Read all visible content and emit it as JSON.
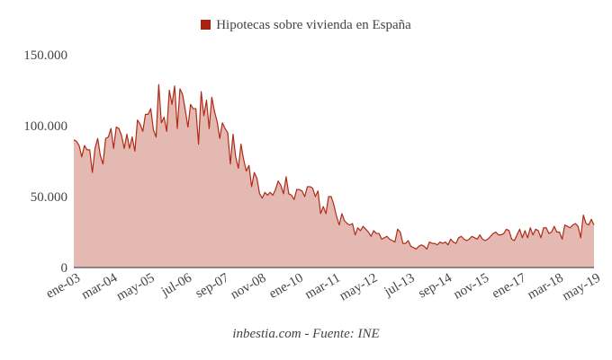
{
  "chart_data": {
    "type": "area",
    "title": "",
    "legend": [
      {
        "label": "Hipotecas sobre vivienda en España",
        "color": "#a8220f"
      }
    ],
    "legend_position": "top-center",
    "footer": "inbestia.com - Fuente: INE",
    "xlabel": "",
    "ylabel": "",
    "ylim": [
      0,
      150000
    ],
    "y_ticks": [
      {
        "value": 0,
        "label": "0"
      },
      {
        "value": 50000,
        "label": "50.000"
      },
      {
        "value": 100000,
        "label": "100.000"
      },
      {
        "value": 150000,
        "label": "150.000"
      }
    ],
    "x_start": {
      "year": 2003,
      "month": 1
    },
    "x_frequency": "monthly",
    "x_tick_labels": [
      {
        "index": 0,
        "label": "ene-03"
      },
      {
        "index": 14,
        "label": "mar-04"
      },
      {
        "index": 28,
        "label": "may-05"
      },
      {
        "index": 42,
        "label": "jul-06"
      },
      {
        "index": 56,
        "label": "sep-07"
      },
      {
        "index": 70,
        "label": "nov-08"
      },
      {
        "index": 84,
        "label": "ene-10"
      },
      {
        "index": 98,
        "label": "mar-11"
      },
      {
        "index": 112,
        "label": "may-12"
      },
      {
        "index": 126,
        "label": "jul-13"
      },
      {
        "index": 140,
        "label": "sep-14"
      },
      {
        "index": 154,
        "label": "nov-15"
      },
      {
        "index": 168,
        "label": "ene-17"
      },
      {
        "index": 182,
        "label": "mar-18"
      },
      {
        "index": 196,
        "label": "may-19"
      }
    ],
    "grid": false,
    "line_color": "#b02a17",
    "fill_color": "#e4b9b1",
    "series": [
      {
        "name": "Hipotecas sobre vivienda en España",
        "values": [
          90000,
          89000,
          86000,
          78000,
          86000,
          83000,
          83000,
          67000,
          84000,
          91000,
          79000,
          73000,
          91000,
          92000,
          98000,
          84000,
          99000,
          98000,
          93000,
          84000,
          94000,
          84000,
          92000,
          82000,
          104000,
          101000,
          96000,
          108000,
          108000,
          112000,
          97000,
          92000,
          129000,
          102000,
          106000,
          96000,
          125000,
          115000,
          128000,
          98000,
          126000,
          122000,
          111000,
          99000,
          115000,
          112000,
          112000,
          87000,
          124000,
          107000,
          118000,
          98000,
          120000,
          110000,
          103000,
          91000,
          102000,
          98000,
          95000,
          73000,
          94000,
          78000,
          70000,
          87000,
          76000,
          68000,
          72000,
          57000,
          67000,
          63000,
          52000,
          49000,
          53000,
          51000,
          53000,
          51000,
          55000,
          61000,
          58000,
          52000,
          64000,
          52000,
          51000,
          48000,
          55000,
          55000,
          54000,
          50000,
          57000,
          57000,
          56000,
          50000,
          54000,
          38000,
          43000,
          38000,
          50000,
          50000,
          44000,
          36000,
          30000,
          38000,
          33000,
          31000,
          30000,
          31000,
          23000,
          28000,
          26000,
          29000,
          27000,
          25000,
          22000,
          26000,
          24000,
          24000,
          20000,
          21000,
          22000,
          20000,
          19000,
          18000,
          27000,
          25000,
          17000,
          17000,
          19000,
          15000,
          14000,
          13000,
          15000,
          16000,
          15000,
          13000,
          18000,
          17000,
          17000,
          16000,
          18000,
          17000,
          18000,
          16000,
          20000,
          18000,
          17000,
          21000,
          22000,
          20000,
          19000,
          20000,
          22000,
          21000,
          20000,
          23000,
          20000,
          19000,
          20000,
          22000,
          24000,
          25000,
          23000,
          23000,
          24000,
          27000,
          26000,
          20000,
          19000,
          23000,
          27000,
          21000,
          26000,
          21000,
          28000,
          23000,
          27000,
          26000,
          21000,
          28000,
          28000,
          24000,
          25000,
          29000,
          25000,
          25000,
          20000,
          30000,
          29000,
          28000,
          30000,
          31000,
          29000,
          21000,
          37000,
          31000,
          30000,
          34000,
          30000
        ]
      }
    ]
  }
}
